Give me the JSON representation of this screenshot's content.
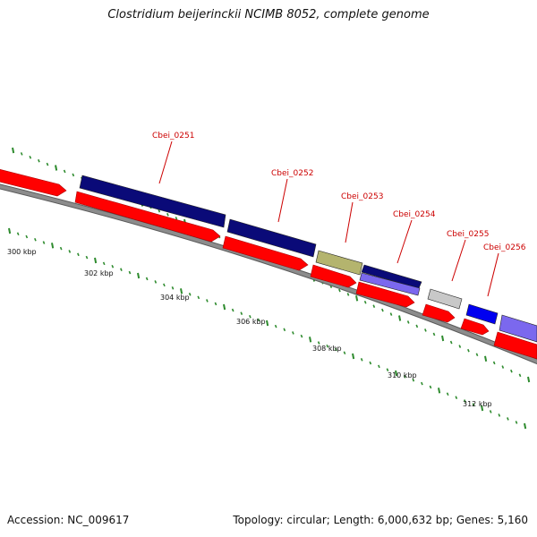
{
  "title": "Clostridium beijerinckii NCIMB 8052, complete genome",
  "footer": {
    "accession": "Accession: NC_009617",
    "topology": "Topology: circular; Length: 6,000,632 bp; Genes: 5,160"
  },
  "colors": {
    "backbone": "#8c8c8c",
    "cds_feature": "#ff0000",
    "gene_label": "#cc0000",
    "tick": "#2e8b2e"
  },
  "kbp_labels": [
    "300 kbp",
    "302 kbp",
    "304 kbp",
    "306 kbp",
    "308 kbp",
    "310 kbp",
    "312 kbp"
  ],
  "gene_labels": [
    "Cbei_0251",
    "Cbei_0252",
    "Cbei_0253",
    "Cbei_0254",
    "Cbei_0255",
    "Cbei_0256"
  ],
  "gene_colors": [
    "#0a0a78",
    "#0a0a78",
    "#b4b46e",
    "#0a0a78",
    "#c8c8c8",
    "#0000f0"
  ],
  "gene_color_names": [
    "navy",
    "navy",
    "olive-khaki",
    "navy-over-slate-blue",
    "light-gray",
    "blue"
  ]
}
